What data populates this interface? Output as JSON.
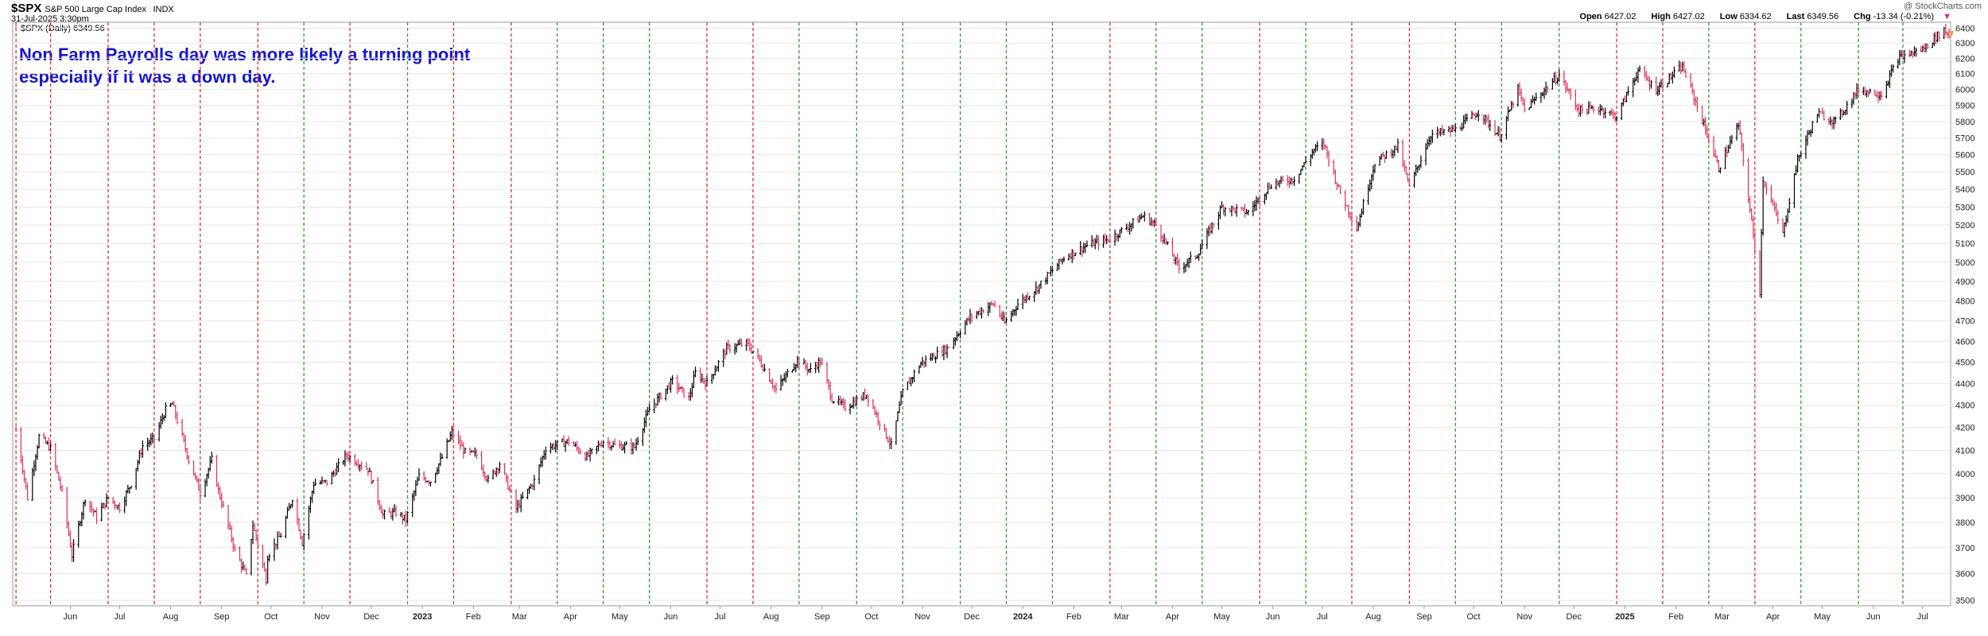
{
  "header": {
    "symbol": "$SPX",
    "name": "S&P 500 Large Cap Index",
    "exchange": "INDX",
    "datetime": "31-Jul-2025 3:30pm",
    "legend": "$SPX (Daily) 6349.56",
    "logo": "@ StockCharts.com",
    "open_label": "Open",
    "open": "6427.02",
    "high_label": "High",
    "high": "6427.02",
    "low_label": "Low",
    "low": "6334.62",
    "last_label": "Last",
    "last": "6349.56",
    "chg_label": "Chg",
    "chg": "-13.34 (-0.21%)",
    "chg_arrow": "▼"
  },
  "annotation": {
    "line1": "Non Farm Payrolls day was more likely a turning point",
    "line2": "especially if it was a down day."
  },
  "colors": {
    "up": "#000000",
    "down": "#e0305a",
    "red_line": "#e03030",
    "green_line": "#2ea02e",
    "annotation": "#1414d2"
  },
  "chart_data": {
    "type": "line",
    "series": [
      {
        "values": [
          [
            "2022-05-13",
            4190
          ],
          [
            "2022-05-20",
            3900
          ],
          [
            "2022-05-27",
            4160
          ],
          [
            "2022-06-03",
            4110
          ],
          [
            "2022-06-10",
            3920
          ],
          [
            "2022-06-16",
            3670
          ],
          [
            "2022-06-24",
            3900
          ],
          [
            "2022-07-01",
            3820
          ],
          [
            "2022-07-08",
            3900
          ],
          [
            "2022-07-15",
            3860
          ],
          [
            "2022-07-22",
            3960
          ],
          [
            "2022-07-29",
            4120
          ],
          [
            "2022-08-05",
            4150
          ],
          [
            "2022-08-12",
            4280
          ],
          [
            "2022-08-16",
            4305
          ],
          [
            "2022-08-26",
            4060
          ],
          [
            "2022-09-02",
            3920
          ],
          [
            "2022-09-09",
            4060
          ],
          [
            "2022-09-13",
            3930
          ],
          [
            "2022-09-23",
            3690
          ],
          [
            "2022-09-30",
            3590
          ],
          [
            "2022-10-04",
            3790
          ],
          [
            "2022-10-12",
            3580
          ],
          [
            "2022-10-13",
            3670
          ],
          [
            "2022-10-21",
            3750
          ],
          [
            "2022-10-28",
            3900
          ],
          [
            "2022-11-03",
            3720
          ],
          [
            "2022-11-10",
            3960
          ],
          [
            "2022-11-18",
            3965
          ],
          [
            "2022-11-30",
            4080
          ],
          [
            "2022-12-13",
            4020
          ],
          [
            "2022-12-22",
            3830
          ],
          [
            "2022-12-30",
            3840
          ],
          [
            "2023-01-05",
            3810
          ],
          [
            "2023-01-13",
            3990
          ],
          [
            "2023-01-20",
            3970
          ],
          [
            "2023-01-27",
            4070
          ],
          [
            "2023-02-02",
            4180
          ],
          [
            "2023-02-10",
            4090
          ],
          [
            "2023-02-17",
            4080
          ],
          [
            "2023-02-24",
            3970
          ],
          [
            "2023-03-03",
            4045
          ],
          [
            "2023-03-13",
            3855
          ],
          [
            "2023-03-24",
            3970
          ],
          [
            "2023-03-31",
            4110
          ],
          [
            "2023-04-14",
            4140
          ],
          [
            "2023-04-25",
            4070
          ],
          [
            "2023-05-05",
            4140
          ],
          [
            "2023-05-12",
            4120
          ],
          [
            "2023-05-24",
            4115
          ],
          [
            "2023-06-02",
            4280
          ],
          [
            "2023-06-16",
            4410
          ],
          [
            "2023-06-26",
            4330
          ],
          [
            "2023-06-30",
            4450
          ],
          [
            "2023-07-07",
            4400
          ],
          [
            "2023-07-19",
            4565
          ],
          [
            "2023-07-31",
            4590
          ],
          [
            "2023-08-07",
            4520
          ],
          [
            "2023-08-18",
            4370
          ],
          [
            "2023-08-31",
            4510
          ],
          [
            "2023-09-08",
            4460
          ],
          [
            "2023-09-14",
            4505
          ],
          [
            "2023-09-21",
            4330
          ],
          [
            "2023-09-29",
            4290
          ],
          [
            "2023-10-12",
            4350
          ],
          [
            "2023-10-20",
            4225
          ],
          [
            "2023-10-27",
            4120
          ],
          [
            "2023-11-03",
            4360
          ],
          [
            "2023-11-14",
            4495
          ],
          [
            "2023-11-30",
            4565
          ],
          [
            "2023-12-14",
            4720
          ],
          [
            "2023-12-28",
            4785
          ],
          [
            "2024-01-04",
            4690
          ],
          [
            "2024-01-12",
            4785
          ],
          [
            "2024-01-24",
            4870
          ],
          [
            "2024-02-09",
            5025
          ],
          [
            "2024-02-23",
            5090
          ],
          [
            "2024-03-08",
            5125
          ],
          [
            "2024-03-28",
            5250
          ],
          [
            "2024-04-05",
            5200
          ],
          [
            "2024-04-19",
            4970
          ],
          [
            "2024-04-30",
            5040
          ],
          [
            "2024-05-15",
            5300
          ],
          [
            "2024-05-31",
            5270
          ],
          [
            "2024-06-14",
            5430
          ],
          [
            "2024-06-28",
            5460
          ],
          [
            "2024-07-10",
            5630
          ],
          [
            "2024-07-16",
            5665
          ],
          [
            "2024-07-25",
            5400
          ],
          [
            "2024-08-05",
            5180
          ],
          [
            "2024-08-16",
            5555
          ],
          [
            "2024-08-30",
            5650
          ],
          [
            "2024-09-06",
            5410
          ],
          [
            "2024-09-19",
            5720
          ],
          [
            "2024-10-04",
            5750
          ],
          [
            "2024-10-18",
            5860
          ],
          [
            "2024-10-31",
            5710
          ],
          [
            "2024-11-11",
            6000
          ],
          [
            "2024-11-15",
            5870
          ],
          [
            "2024-12-06",
            6090
          ],
          [
            "2024-12-18",
            5870
          ],
          [
            "2024-12-31",
            5880
          ],
          [
            "2025-01-10",
            5830
          ],
          [
            "2025-01-23",
            6120
          ],
          [
            "2025-02-03",
            6000
          ],
          [
            "2025-02-19",
            6145
          ],
          [
            "2025-03-04",
            5780
          ],
          [
            "2025-03-13",
            5520
          ],
          [
            "2025-03-25",
            5780
          ],
          [
            "2025-04-04",
            5070
          ],
          [
            "2025-04-07",
            4850
          ],
          [
            "2025-04-09",
            5460
          ],
          [
            "2025-04-21",
            5150
          ],
          [
            "2025-04-30",
            5570
          ],
          [
            "2025-05-12",
            5850
          ],
          [
            "2025-05-23",
            5800
          ],
          [
            "2025-06-06",
            6000
          ],
          [
            "2025-06-20",
            5970
          ],
          [
            "2025-06-30",
            6200
          ],
          [
            "2025-07-15",
            6260
          ],
          [
            "2025-07-28",
            6390
          ],
          [
            "2025-07-31",
            6349.56
          ]
        ]
      }
    ],
    "x_range": [
      "2022-05-11",
      "2025-08-01"
    ],
    "y_scale": "log",
    "ylim": [
      3480,
      6440
    ],
    "y_ticks": [
      3500,
      3600,
      3700,
      3800,
      3900,
      4000,
      4100,
      4200,
      4300,
      4400,
      4500,
      4600,
      4700,
      4800,
      4900,
      5000,
      5100,
      5200,
      5300,
      5400,
      5500,
      5600,
      5700,
      5800,
      5900,
      6000,
      6100,
      6200,
      6300,
      6400
    ],
    "month_labels": [
      [
        "2022-06-15",
        "Jun"
      ],
      [
        "2022-07-15",
        "Jul"
      ],
      [
        "2022-08-15",
        "Aug"
      ],
      [
        "2022-09-15",
        "Sep"
      ],
      [
        "2022-10-15",
        "Oct"
      ],
      [
        "2022-11-15",
        "Nov"
      ],
      [
        "2022-12-15",
        "Dec"
      ],
      [
        "2023-01-15",
        "2023"
      ],
      [
        "2023-02-15",
        "Feb"
      ],
      [
        "2023-03-15",
        "Mar"
      ],
      [
        "2023-04-15",
        "Apr"
      ],
      [
        "2023-05-15",
        "May"
      ],
      [
        "2023-06-15",
        "Jun"
      ],
      [
        "2023-07-15",
        "Jul"
      ],
      [
        "2023-08-15",
        "Aug"
      ],
      [
        "2023-09-15",
        "Sep"
      ],
      [
        "2023-10-15",
        "Oct"
      ],
      [
        "2023-11-15",
        "Nov"
      ],
      [
        "2023-12-15",
        "Dec"
      ],
      [
        "2024-01-15",
        "2024"
      ],
      [
        "2024-02-15",
        "Feb"
      ],
      [
        "2024-03-15",
        "Mar"
      ],
      [
        "2024-04-15",
        "Apr"
      ],
      [
        "2024-05-15",
        "May"
      ],
      [
        "2024-06-15",
        "Jun"
      ],
      [
        "2024-07-15",
        "Jul"
      ],
      [
        "2024-08-15",
        "Aug"
      ],
      [
        "2024-09-15",
        "Sep"
      ],
      [
        "2024-10-15",
        "Oct"
      ],
      [
        "2024-11-15",
        "Nov"
      ],
      [
        "2024-12-15",
        "Dec"
      ],
      [
        "2025-01-15",
        "2025"
      ],
      [
        "2025-02-15",
        "Feb"
      ],
      [
        "2025-03-15",
        "Mar"
      ],
      [
        "2025-04-15",
        "Apr"
      ],
      [
        "2025-05-15",
        "May"
      ],
      [
        "2025-06-15",
        "Jun"
      ],
      [
        "2025-07-15",
        "Jul"
      ]
    ],
    "bold_labels": [
      "2023",
      "2024",
      "2025"
    ],
    "payroll_days": [
      [
        "2022-05-13",
        "red"
      ],
      [
        "2022-06-03",
        "red"
      ],
      [
        "2022-07-08",
        "red"
      ],
      [
        "2022-08-05",
        "red"
      ],
      [
        "2022-09-02",
        "red"
      ],
      [
        "2022-10-07",
        "red"
      ],
      [
        "2022-11-04",
        "green"
      ],
      [
        "2022-12-02",
        "red"
      ],
      [
        "2023-01-06",
        "green"
      ],
      [
        "2023-02-03",
        "red"
      ],
      [
        "2023-03-10",
        "red"
      ],
      [
        "2023-04-07",
        "green"
      ],
      [
        "2023-05-05",
        "green"
      ],
      [
        "2023-06-02",
        "green"
      ],
      [
        "2023-07-07",
        "red"
      ],
      [
        "2023-08-04",
        "red"
      ],
      [
        "2023-09-01",
        "green"
      ],
      [
        "2023-10-06",
        "green"
      ],
      [
        "2023-11-03",
        "green"
      ],
      [
        "2023-12-08",
        "green"
      ],
      [
        "2024-01-05",
        "green"
      ],
      [
        "2024-02-02",
        "green"
      ],
      [
        "2024-03-08",
        "red"
      ],
      [
        "2024-04-05",
        "green"
      ],
      [
        "2024-05-03",
        "green"
      ],
      [
        "2024-06-07",
        "red"
      ],
      [
        "2024-07-05",
        "green"
      ],
      [
        "2024-08-02",
        "red"
      ],
      [
        "2024-09-06",
        "red"
      ],
      [
        "2024-10-04",
        "green"
      ],
      [
        "2024-11-01",
        "green"
      ],
      [
        "2024-12-06",
        "green"
      ],
      [
        "2025-01-10",
        "red"
      ],
      [
        "2025-02-07",
        "red"
      ],
      [
        "2025-03-07",
        "green"
      ],
      [
        "2025-04-04",
        "red"
      ],
      [
        "2025-05-02",
        "green"
      ],
      [
        "2025-06-06",
        "green"
      ],
      [
        "2025-07-03",
        "green"
      ]
    ],
    "grid": true
  }
}
